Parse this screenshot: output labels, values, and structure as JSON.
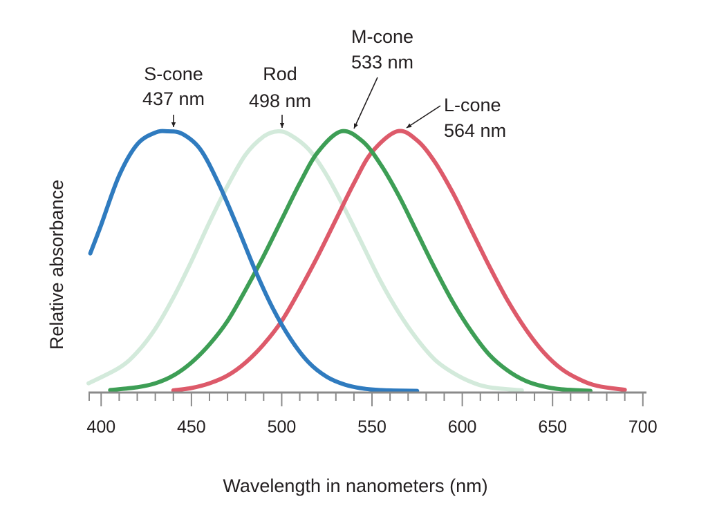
{
  "chart_data": {
    "type": "line",
    "title": "",
    "xlabel": "Wavelength in nanometers (nm)",
    "ylabel": "Relative absorbance",
    "xlim": [
      393,
      702
    ],
    "ylim": [
      0,
      1
    ],
    "x_ticks": [
      400,
      450,
      500,
      550,
      600,
      650,
      700
    ],
    "x_minor_step": 10,
    "grid": false,
    "legend": "none",
    "series": [
      {
        "name": "S-cone",
        "peak_label": "437 nm",
        "peak": 437,
        "color": "#2f7bbf",
        "x": [
          394,
          400,
          410,
          420,
          430,
          437,
          445,
          455,
          465,
          475,
          485,
          495,
          505,
          515,
          525,
          535,
          545,
          555,
          565,
          575
        ],
        "y": [
          0.53,
          0.64,
          0.83,
          0.95,
          0.995,
          1.0,
          0.99,
          0.93,
          0.8,
          0.64,
          0.47,
          0.32,
          0.2,
          0.11,
          0.055,
          0.025,
          0.01,
          0.004,
          0.002,
          0.001
        ]
      },
      {
        "name": "Rod",
        "peak_label": "498 nm",
        "peak": 498,
        "color": "#d3eadb",
        "x": [
          393,
          410,
          420,
          430,
          440,
          450,
          460,
          470,
          480,
          490,
          498,
          505,
          515,
          525,
          535,
          545,
          555,
          565,
          575,
          585,
          595,
          605,
          615,
          633
        ],
        "y": [
          0.03,
          0.09,
          0.15,
          0.24,
          0.36,
          0.5,
          0.65,
          0.79,
          0.91,
          0.98,
          1.0,
          0.985,
          0.93,
          0.83,
          0.7,
          0.56,
          0.42,
          0.3,
          0.2,
          0.12,
          0.07,
          0.035,
          0.015,
          0.003
        ]
      },
      {
        "name": "M-cone",
        "peak_label": "533 nm",
        "peak": 533,
        "color": "#3d9e55",
        "x": [
          405,
          420,
          430,
          440,
          450,
          460,
          470,
          480,
          490,
          500,
          510,
          520,
          533,
          545,
          555,
          565,
          575,
          585,
          595,
          605,
          615,
          625,
          635,
          645,
          655,
          671
        ],
        "y": [
          0.004,
          0.015,
          0.03,
          0.06,
          0.11,
          0.18,
          0.27,
          0.39,
          0.52,
          0.66,
          0.8,
          0.92,
          1.0,
          0.96,
          0.87,
          0.75,
          0.61,
          0.47,
          0.34,
          0.23,
          0.14,
          0.08,
          0.04,
          0.018,
          0.007,
          0.001
        ]
      },
      {
        "name": "L-cone",
        "peak_label": "564 nm",
        "peak": 564,
        "color": "#dd5a6a",
        "x": [
          440,
          450,
          460,
          470,
          480,
          490,
          500,
          510,
          520,
          530,
          540,
          550,
          564,
          575,
          585,
          595,
          605,
          615,
          625,
          635,
          645,
          655,
          665,
          675,
          690
        ],
        "y": [
          0.003,
          0.012,
          0.03,
          0.06,
          0.11,
          0.18,
          0.27,
          0.39,
          0.52,
          0.66,
          0.8,
          0.92,
          1.0,
          0.965,
          0.88,
          0.76,
          0.62,
          0.48,
          0.35,
          0.24,
          0.15,
          0.085,
          0.045,
          0.02,
          0.005
        ]
      }
    ]
  }
}
